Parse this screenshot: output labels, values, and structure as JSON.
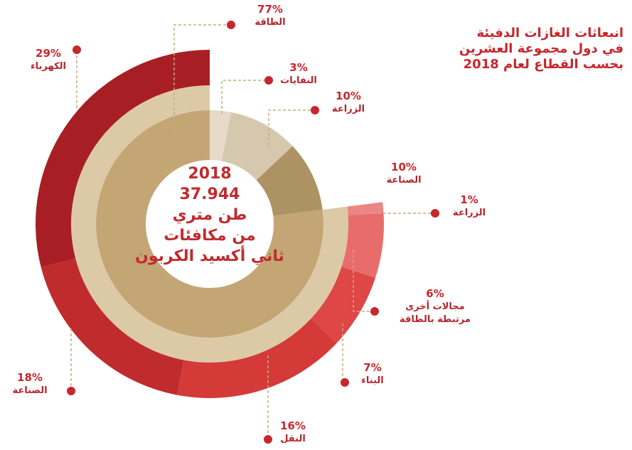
{
  "chart_data": {
    "type": "sunburst",
    "title": [
      "انبعاثات الغازات الدفيئة",
      "في دول مجموعة العشرين",
      "بحسب القطاع لعام 2018"
    ],
    "center": [
      "2018",
      "37.944",
      "طن متري",
      "من مكافئات",
      "ثاني أكسيد الكربون"
    ],
    "categories": [
      "النفايات",
      "الزراعة",
      "الصناعة",
      "الطاقة"
    ],
    "values": [
      3,
      10,
      10,
      77
    ],
    "value_labels": [
      "3%",
      "10%",
      "10%",
      "77%"
    ],
    "colors": [
      "#e6dac8",
      "#d6c8af",
      "#ad9363",
      "#c4a675"
    ],
    "children": {
      "parent": 3,
      "categories": [
        "الزراعة",
        "مجالات أخرى\nمرتبطة بالطاقة",
        "البناء",
        "النقل",
        "الصناعة",
        "الكهرباء"
      ],
      "values": [
        1,
        6,
        7,
        16,
        18,
        29
      ],
      "value_labels": [
        "1%",
        "6%",
        "7%",
        "16%",
        "18%",
        "29%"
      ],
      "colors": [
        "#ee8585",
        "#e86c6c",
        "#df4646",
        "#d33a38",
        "#c02b2e",
        "#a71f24"
      ]
    }
  }
}
